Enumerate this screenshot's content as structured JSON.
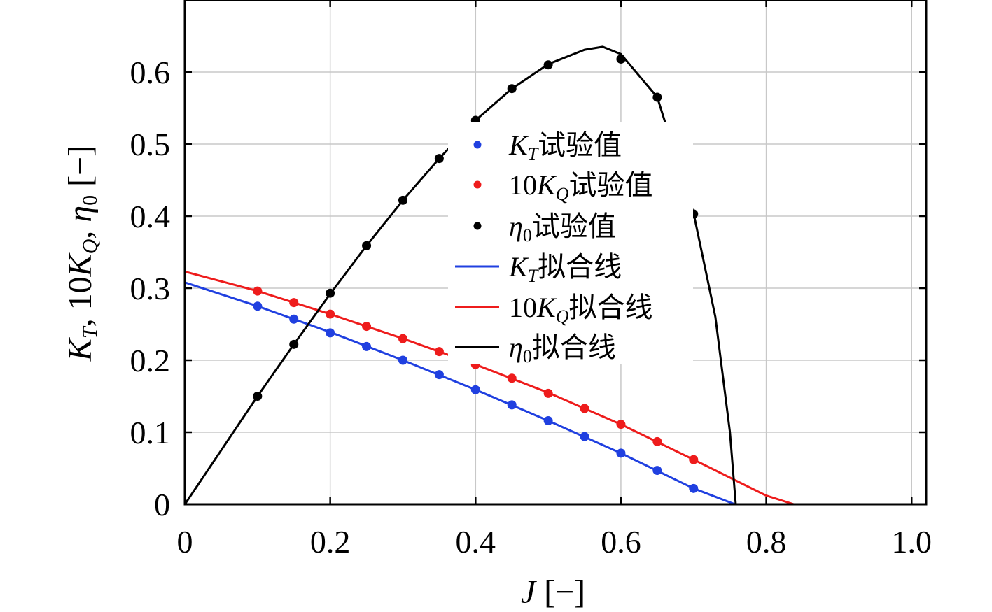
{
  "chart_data": {
    "type": "line",
    "title": "",
    "xlabel": "J [−]",
    "ylabel": "KT, 10KQ, η0 [−]",
    "xlim": [
      0,
      1.02
    ],
    "ylim": [
      0,
      0.7
    ],
    "xticks": [
      0,
      0.2,
      0.4,
      0.6,
      0.8,
      1.0
    ],
    "xtick_labels": [
      "0",
      "0.2",
      "0.4",
      "0.6",
      "0.8",
      "1.0"
    ],
    "yticks": [
      0,
      0.1,
      0.2,
      0.3,
      0.4,
      0.5,
      0.6
    ],
    "ytick_labels": [
      "0",
      "0.1",
      "0.2",
      "0.3",
      "0.4",
      "0.5",
      "0.6"
    ],
    "grid": true,
    "legend_position": "center",
    "series": [
      {
        "name": "KT试验值",
        "kind": "scatter",
        "color": "#2040e0",
        "x": [
          0.1,
          0.15,
          0.2,
          0.25,
          0.3,
          0.35,
          0.4,
          0.45,
          0.5,
          0.55,
          0.6,
          0.65,
          0.7
        ],
        "values": [
          0.275,
          0.257,
          0.238,
          0.219,
          0.2,
          0.18,
          0.159,
          0.138,
          0.116,
          0.094,
          0.071,
          0.047,
          0.022
        ]
      },
      {
        "name": "10KQ试验值",
        "kind": "scatter",
        "color": "#ee1c1c",
        "x": [
          0.1,
          0.15,
          0.2,
          0.25,
          0.3,
          0.35,
          0.4,
          0.45,
          0.5,
          0.55,
          0.6,
          0.65,
          0.7
        ],
        "values": [
          0.296,
          0.28,
          0.264,
          0.247,
          0.23,
          0.212,
          0.194,
          0.175,
          0.154,
          0.133,
          0.111,
          0.087,
          0.062
        ]
      },
      {
        "name": "η0试验值",
        "kind": "scatter",
        "color": "#000000",
        "x": [
          0.1,
          0.15,
          0.2,
          0.25,
          0.3,
          0.35,
          0.4,
          0.45,
          0.5,
          0.6,
          0.65,
          0.7
        ],
        "values": [
          0.15,
          0.222,
          0.293,
          0.359,
          0.422,
          0.48,
          0.533,
          0.577,
          0.61,
          0.618,
          0.565,
          0.403
        ]
      },
      {
        "name": "KT拟合线",
        "kind": "line",
        "color": "#2040e0",
        "x": [
          0,
          0.1,
          0.2,
          0.3,
          0.4,
          0.5,
          0.6,
          0.7,
          0.757
        ],
        "values": [
          0.308,
          0.275,
          0.239,
          0.2,
          0.159,
          0.116,
          0.071,
          0.022,
          0.0
        ]
      },
      {
        "name": "10KQ拟合线",
        "kind": "line",
        "color": "#ee1c1c",
        "x": [
          0,
          0.1,
          0.2,
          0.3,
          0.4,
          0.5,
          0.6,
          0.7,
          0.8,
          0.838
        ],
        "values": [
          0.323,
          0.296,
          0.264,
          0.23,
          0.194,
          0.155,
          0.111,
          0.062,
          0.012,
          0.0
        ]
      },
      {
        "name": "η0拟合线",
        "kind": "line",
        "color": "#000000",
        "x": [
          0,
          0.05,
          0.1,
          0.15,
          0.2,
          0.25,
          0.3,
          0.35,
          0.4,
          0.45,
          0.5,
          0.55,
          0.575,
          0.6,
          0.65,
          0.7,
          0.73,
          0.75,
          0.758
        ],
        "values": [
          0,
          0.075,
          0.15,
          0.222,
          0.292,
          0.359,
          0.422,
          0.48,
          0.533,
          0.577,
          0.611,
          0.631,
          0.635,
          0.625,
          0.565,
          0.404,
          0.26,
          0.1,
          0.0
        ]
      }
    ],
    "legend": [
      {
        "label": "KT试验值",
        "kind": "marker",
        "color": "#2040e0"
      },
      {
        "label": "10KQ试验值",
        "kind": "marker",
        "color": "#ee1c1c"
      },
      {
        "label": "η0试验值",
        "kind": "marker",
        "color": "#000000"
      },
      {
        "label": "KT拟合线",
        "kind": "line",
        "color": "#2040e0"
      },
      {
        "label": "10KQ拟合线",
        "kind": "line",
        "color": "#ee1c1c"
      },
      {
        "label": "η0拟合线",
        "kind": "line",
        "color": "#000000"
      }
    ]
  },
  "text": {
    "legend": {
      "kt_exp": {
        "sym": "K",
        "sub": "T",
        "rest": "试验值"
      },
      "kq_exp": {
        "pre": "10",
        "sym": "K",
        "sub": "Q",
        "rest": "试验值"
      },
      "eta_exp": {
        "sym": "η",
        "sub": "0",
        "rest": "试验值"
      },
      "kt_fit": {
        "sym": "K",
        "sub": "T",
        "rest": "拟合线"
      },
      "kq_fit": {
        "pre": "10",
        "sym": "K",
        "sub": "Q",
        "rest": "拟合线"
      },
      "eta_fit": {
        "sym": "η",
        "sub": "0",
        "rest": "拟合线"
      }
    },
    "ylabel": {
      "k1": "K",
      "s1": "T",
      "sep1": ", 10",
      "k2": "K",
      "s2": "Q",
      "sep2": ", ",
      "eta": "η",
      "s3": "0",
      "unit": " [−]"
    },
    "xlabel": {
      "sym": "J",
      "unit": " [−]"
    }
  }
}
